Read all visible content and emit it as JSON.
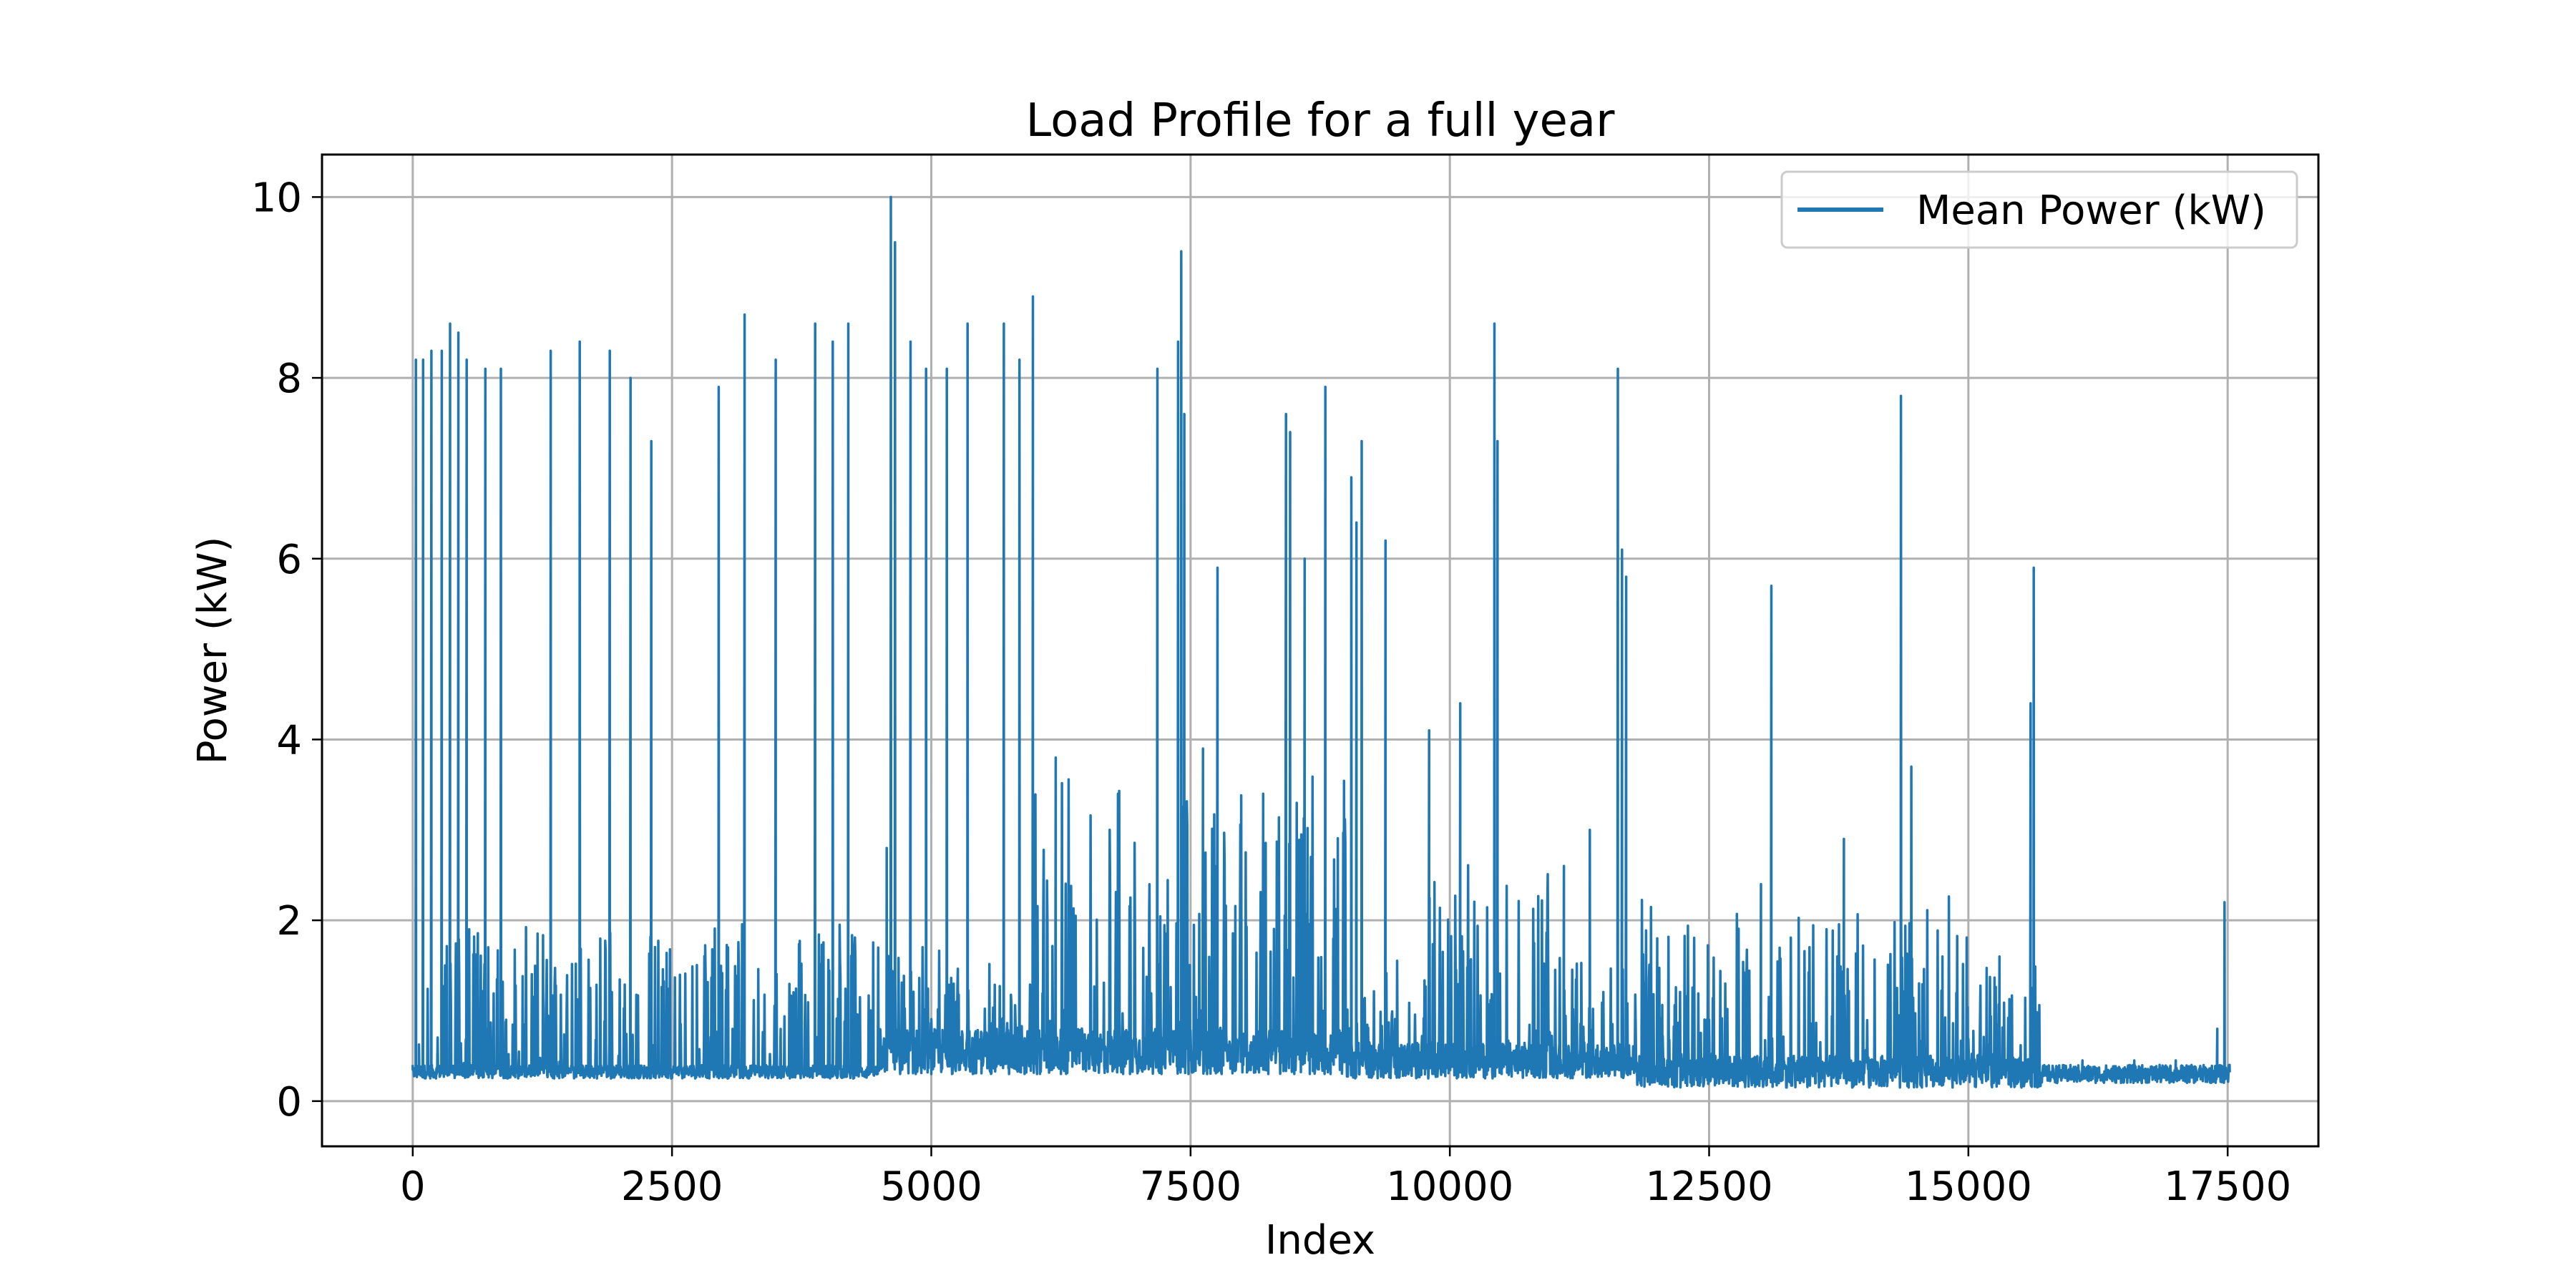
{
  "chart_data": {
    "type": "line",
    "title": "Load Profile for a full year",
    "xlabel": "Index",
    "ylabel": "Power (kW)",
    "xlim": [
      -875,
      18375
    ],
    "ylim": [
      -0.5,
      10.47
    ],
    "xticks": [
      0,
      2500,
      5000,
      7500,
      10000,
      12500,
      15000,
      17500
    ],
    "xtick_labels": [
      "0",
      "2500",
      "5000",
      "7500",
      "10000",
      "12500",
      "15000",
      "17500"
    ],
    "yticks": [
      0,
      2,
      4,
      6,
      8,
      10
    ],
    "ytick_labels": [
      "0",
      "2",
      "4",
      "6",
      "8",
      "10"
    ],
    "grid": true,
    "legend_position": "upper right",
    "color": "#1f77b4",
    "series": [
      {
        "name": "Mean Power (kW)",
        "n_points": 17520,
        "peaks": [
          [
            0,
            0.4
          ],
          [
            30,
            8.2
          ],
          [
            60,
            0.3
          ],
          [
            100,
            8.2
          ],
          [
            140,
            0.3
          ],
          [
            180,
            8.3
          ],
          [
            230,
            0.3
          ],
          [
            280,
            8.3
          ],
          [
            320,
            0.3
          ],
          [
            360,
            8.6
          ],
          [
            400,
            0.3
          ],
          [
            440,
            8.5
          ],
          [
            480,
            0.3
          ],
          [
            520,
            8.2
          ],
          [
            560,
            0.3
          ],
          [
            700,
            8.1
          ],
          [
            760,
            0.3
          ],
          [
            850,
            8.1
          ],
          [
            900,
            0.3
          ],
          [
            1330,
            8.3
          ],
          [
            1380,
            0.3
          ],
          [
            1610,
            8.4
          ],
          [
            1660,
            0.3
          ],
          [
            1900,
            8.3
          ],
          [
            1950,
            0.3
          ],
          [
            2100,
            8.0
          ],
          [
            2150,
            0.3
          ],
          [
            2300,
            7.3
          ],
          [
            2350,
            0.3
          ],
          [
            2950,
            7.9
          ],
          [
            3000,
            0.3
          ],
          [
            3200,
            8.7
          ],
          [
            3250,
            0.3
          ],
          [
            3500,
            8.2
          ],
          [
            3550,
            0.3
          ],
          [
            3880,
            8.6
          ],
          [
            3930,
            0.3
          ],
          [
            4050,
            8.4
          ],
          [
            4100,
            0.3
          ],
          [
            4200,
            8.6
          ],
          [
            4250,
            0.3
          ],
          [
            4570,
            2.8
          ],
          [
            4610,
            10.0
          ],
          [
            4650,
            9.5
          ],
          [
            4700,
            0.3
          ],
          [
            4800,
            8.4
          ],
          [
            4850,
            0.3
          ],
          [
            4950,
            8.1
          ],
          [
            5000,
            0.3
          ],
          [
            5150,
            8.1
          ],
          [
            5200,
            0.3
          ],
          [
            5350,
            8.6
          ],
          [
            5400,
            0.3
          ],
          [
            5700,
            8.6
          ],
          [
            5750,
            0.3
          ],
          [
            5850,
            8.2
          ],
          [
            5900,
            0.3
          ],
          [
            5980,
            8.9
          ],
          [
            6020,
            0.3
          ],
          [
            6200,
            3.8
          ],
          [
            6250,
            0.3
          ],
          [
            6800,
            3.4
          ],
          [
            6850,
            0.3
          ],
          [
            7180,
            8.1
          ],
          [
            7220,
            0.3
          ],
          [
            7380,
            8.4
          ],
          [
            7410,
            9.4
          ],
          [
            7440,
            7.6
          ],
          [
            7480,
            0.3
          ],
          [
            7620,
            3.9
          ],
          [
            7660,
            0.3
          ],
          [
            7760,
            5.9
          ],
          [
            7800,
            0.3
          ],
          [
            8200,
            3.4
          ],
          [
            8250,
            0.3
          ],
          [
            8420,
            7.6
          ],
          [
            8460,
            7.4
          ],
          [
            8500,
            0.3
          ],
          [
            8600,
            6.0
          ],
          [
            8650,
            0.3
          ],
          [
            8800,
            7.9
          ],
          [
            8850,
            0.3
          ],
          [
            9050,
            6.9
          ],
          [
            9100,
            6.4
          ],
          [
            9150,
            7.3
          ],
          [
            9200,
            0.3
          ],
          [
            9380,
            6.2
          ],
          [
            9420,
            0.3
          ],
          [
            9800,
            4.1
          ],
          [
            9850,
            0.3
          ],
          [
            10100,
            4.4
          ],
          [
            10150,
            0.3
          ],
          [
            10430,
            8.6
          ],
          [
            10460,
            7.3
          ],
          [
            10500,
            0.3
          ],
          [
            11100,
            2.6
          ],
          [
            11150,
            0.3
          ],
          [
            11350,
            3.0
          ],
          [
            11400,
            0.3
          ],
          [
            11620,
            8.1
          ],
          [
            11660,
            6.1
          ],
          [
            11700,
            5.8
          ],
          [
            11740,
            0.3
          ],
          [
            12000,
            1.8
          ],
          [
            12050,
            0.3
          ],
          [
            13000,
            2.4
          ],
          [
            13050,
            0.3
          ],
          [
            13100,
            5.7
          ],
          [
            13150,
            0.3
          ],
          [
            13800,
            2.9
          ],
          [
            13850,
            0.3
          ],
          [
            14350,
            7.8
          ],
          [
            14400,
            0.3
          ],
          [
            14450,
            3.7
          ],
          [
            14500,
            0.3
          ],
          [
            14750,
            1.6
          ],
          [
            14800,
            0.3
          ],
          [
            15300,
            1.6
          ],
          [
            15350,
            0.3
          ],
          [
            15600,
            4.4
          ],
          [
            15630,
            5.9
          ],
          [
            15660,
            0.3
          ],
          [
            16100,
            0.45
          ],
          [
            16600,
            0.45
          ],
          [
            17000,
            0.45
          ],
          [
            17400,
            0.8
          ],
          [
            17470,
            2.2
          ],
          [
            17519,
            0.4
          ]
        ]
      }
    ]
  }
}
